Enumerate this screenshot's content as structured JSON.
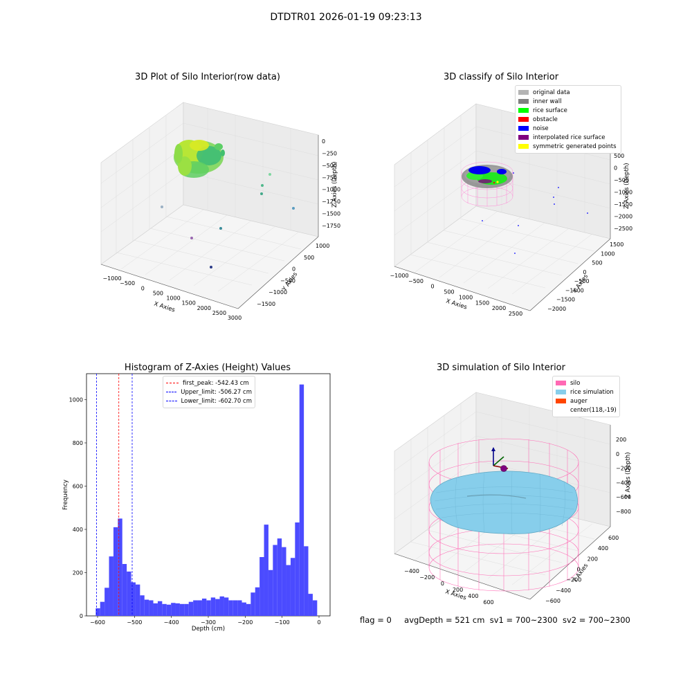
{
  "figure_title": "DTDTR01 2026-01-19 09:23:13",
  "panels": {
    "p1": {
      "title": "3D Plot of Silo Interior(row data)",
      "xlabel": "X Axies",
      "ylabel": "Y Axies",
      "zlabel": "Z Axies (Depth)",
      "xticks": [
        "−1000",
        "−500",
        "0",
        "500",
        "1000",
        "1500",
        "2000",
        "2500",
        "3000"
      ],
      "yticks": [
        "1000",
        "500",
        "0",
        "−500",
        "−1000",
        "−1500"
      ],
      "zticks": [
        "0",
        "−250",
        "−500",
        "−750",
        "−1000",
        "−1250",
        "−1500",
        "−1750"
      ]
    },
    "p2": {
      "title": "3D classify of Silo Interior",
      "xlabel": "X Axies",
      "ylabel": "Y Axies",
      "zlabel": "Z Axies (Depth)",
      "xticks": [
        "−1000",
        "−500",
        "0",
        "500",
        "1000",
        "1500",
        "2000",
        "2500"
      ],
      "yticks": [
        "1500",
        "1000",
        "500",
        "0",
        "−500",
        "−1000",
        "−1500",
        "−2000"
      ],
      "zticks": [
        "500",
        "0",
        "−500",
        "−1000",
        "−1500",
        "−2000",
        "−2500"
      ],
      "legend": [
        {
          "label": "original data",
          "color": "#b4b4b4"
        },
        {
          "label": "inner wall",
          "color": "#808080"
        },
        {
          "label": "rice surface",
          "color": "#00ff00"
        },
        {
          "label": "obstacle",
          "color": "#ff0000"
        },
        {
          "label": "noise",
          "color": "#0000ff"
        },
        {
          "label": "interpolated rice surface",
          "color": "#800080"
        },
        {
          "label": "symmetric generated points",
          "color": "#ffff00"
        }
      ]
    },
    "p3": {
      "title": "Histogram of Z-Axies (Height) Values",
      "xlabel": "Depth (cm)",
      "ylabel": "Frequency",
      "xticks": [
        "−600",
        "−500",
        "−400",
        "−300",
        "−200",
        "−100",
        "0"
      ],
      "legend": [
        {
          "label": "first_peak: -542.43 cm",
          "color": "#ff0000"
        },
        {
          "label": "Upper_limit: -506.27 cm",
          "color": "#0000ff"
        },
        {
          "label": "Lower_limit: -602.70 cm",
          "color": "#0000ff"
        }
      ]
    },
    "p4": {
      "title": "3D simulation of Silo Interior",
      "xlabel": "X Axies",
      "ylabel": "Y Axies",
      "zlabel": "Z Axies (Depth)",
      "xticks": [
        "−400",
        "−200",
        "0",
        "200",
        "400",
        "600"
      ],
      "yticks": [
        "600",
        "400",
        "200",
        "0",
        "−200",
        "−400",
        "−600"
      ],
      "zticks": [
        "200",
        "0",
        "−200",
        "−400",
        "−600",
        "−800"
      ],
      "legend": [
        {
          "label": "silo",
          "color": "#ff69b4"
        },
        {
          "label": "rice simulation",
          "color": "#87ceeb"
        },
        {
          "label": "auger",
          "color": "#ff4500"
        },
        {
          "label": "center(118,-19)",
          "color": ""
        }
      ]
    }
  },
  "status": {
    "flag": "flag = 0",
    "avg": "avgDepth = 521 cm",
    "sv1": "sv1 = 700~2300",
    "sv2": "sv2 = 700~2300"
  },
  "chart_data": [
    {
      "type": "scatter",
      "title": "3D Plot of Silo Interior(row data)",
      "xlabel": "X Axies",
      "ylabel": "Y Axies",
      "zlabel": "Z Axies (Depth)",
      "xlim": [
        -1200,
        3000
      ],
      "ylim": [
        -1700,
        1200
      ],
      "zlim": [
        -1900,
        100
      ],
      "note_series": "dense point cloud of silo interior near x≈0, y≈0, z≈-300 plus sparse outliers"
    },
    {
      "type": "scatter",
      "title": "3D classify of Silo Interior",
      "xlabel": "X Axies",
      "ylabel": "Y Axies",
      "zlabel": "Z Axies (Depth)",
      "xlim": [
        -1100,
        2600
      ],
      "ylim": [
        -2100,
        1600
      ],
      "zlim": [
        -2700,
        600
      ],
      "series": [
        {
          "name": "original data"
        },
        {
          "name": "inner wall"
        },
        {
          "name": "rice surface"
        },
        {
          "name": "obstacle"
        },
        {
          "name": "noise"
        },
        {
          "name": "interpolated rice surface"
        },
        {
          "name": "symmetric generated points"
        }
      ]
    },
    {
      "type": "bar",
      "title": "Histogram of Z-Axies (Height) Values",
      "xlabel": "Depth (cm)",
      "ylabel": "Frequency",
      "xlim": [
        -630,
        30
      ],
      "ylim": [
        0,
        1120
      ],
      "yticks": [
        0,
        200,
        400,
        600,
        800,
        1000
      ],
      "bin_start": -605,
      "bin_width": 12,
      "values": [
        35,
        65,
        130,
        275,
        410,
        450,
        240,
        205,
        155,
        145,
        95,
        75,
        72,
        58,
        68,
        55,
        52,
        60,
        58,
        55,
        55,
        65,
        72,
        72,
        80,
        72,
        85,
        78,
        90,
        85,
        72,
        72,
        72,
        62,
        55,
        108,
        132,
        272,
        422,
        212,
        328,
        358,
        318,
        235,
        268,
        432,
        1070,
        322,
        102,
        72
      ],
      "vlines": [
        {
          "name": "first_peak",
          "value": -542.43,
          "color": "#ff0000"
        },
        {
          "name": "Upper_limit",
          "value": -506.27,
          "color": "#0000ff"
        },
        {
          "name": "Lower_limit",
          "value": -602.7,
          "color": "#0000ff"
        }
      ]
    },
    {
      "type": "scatter",
      "title": "3D simulation of Silo Interior",
      "xlabel": "X Axies",
      "ylabel": "Y Axies",
      "zlabel": "Z Axies (Depth)",
      "xlim": [
        -500,
        700
      ],
      "ylim": [
        -700,
        700
      ],
      "zlim": [
        -950,
        350
      ],
      "series": [
        {
          "name": "silo"
        },
        {
          "name": "rice simulation"
        },
        {
          "name": "auger"
        }
      ],
      "center": [
        118,
        -19
      ]
    }
  ]
}
